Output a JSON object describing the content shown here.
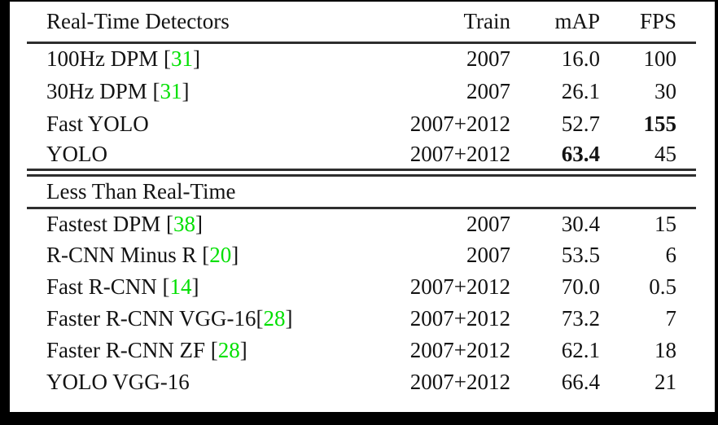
{
  "colors": {
    "citation": "#00e000",
    "text": "#131313",
    "rule": "#2e2e2e",
    "frame": "#000000"
  },
  "table": {
    "columns": [
      "Real-Time Detectors",
      "Train",
      "mAP",
      "FPS"
    ],
    "sections": [
      {
        "title": null,
        "rows": [
          {
            "label": "100Hz DPM",
            "cite": "31",
            "space_before_cite": true,
            "train": "2007",
            "map": "16.0",
            "fps": "100",
            "map_bold": false,
            "fps_bold": false
          },
          {
            "label": "30Hz DPM",
            "cite": "31",
            "space_before_cite": true,
            "train": "2007",
            "map": "26.1",
            "fps": "30",
            "map_bold": false,
            "fps_bold": false
          },
          {
            "label": "Fast YOLO",
            "cite": null,
            "space_before_cite": false,
            "train": "2007+2012",
            "map": "52.7",
            "fps": "155",
            "map_bold": false,
            "fps_bold": true
          },
          {
            "label": "YOLO",
            "cite": null,
            "space_before_cite": false,
            "train": "2007+2012",
            "map": "63.4",
            "fps": "45",
            "map_bold": true,
            "fps_bold": false
          }
        ]
      },
      {
        "title": "Less Than Real-Time",
        "rows": [
          {
            "label": "Fastest DPM",
            "cite": "38",
            "space_before_cite": true,
            "train": "2007",
            "map": "30.4",
            "fps": "15",
            "map_bold": false,
            "fps_bold": false
          },
          {
            "label": "R-CNN Minus R",
            "cite": "20",
            "space_before_cite": true,
            "train": "2007",
            "map": "53.5",
            "fps": "6",
            "map_bold": false,
            "fps_bold": false
          },
          {
            "label": "Fast R-CNN",
            "cite": "14",
            "space_before_cite": true,
            "train": "2007+2012",
            "map": "70.0",
            "fps": "0.5",
            "map_bold": false,
            "fps_bold": false
          },
          {
            "label": "Faster R-CNN VGG-16",
            "cite": "28",
            "space_before_cite": false,
            "train": "2007+2012",
            "map": "73.2",
            "fps": "7",
            "map_bold": false,
            "fps_bold": false
          },
          {
            "label": "Faster R-CNN ZF",
            "cite": "28",
            "space_before_cite": true,
            "train": "2007+2012",
            "map": "62.1",
            "fps": "18",
            "map_bold": false,
            "fps_bold": false
          },
          {
            "label": "YOLO VGG-16",
            "cite": null,
            "space_before_cite": false,
            "train": "2007+2012",
            "map": "66.4",
            "fps": "21",
            "map_bold": false,
            "fps_bold": false
          }
        ]
      }
    ]
  }
}
